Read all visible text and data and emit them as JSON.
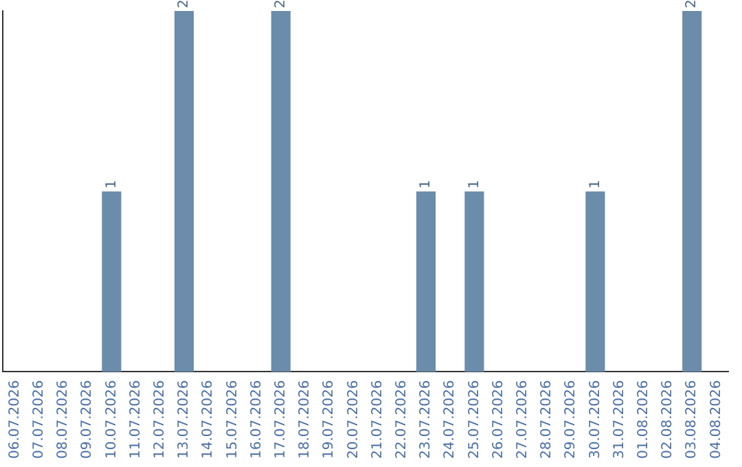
{
  "chart_data": {
    "type": "bar",
    "categories": [
      "06.07.2026",
      "07.07.2026",
      "08.07.2026",
      "09.07.2026",
      "10.07.2026",
      "11.07.2026",
      "12.07.2026",
      "13.07.2026",
      "14.07.2026",
      "15.07.2026",
      "16.07.2026",
      "17.07.2026",
      "18.07.2026",
      "19.07.2026",
      "20.07.2026",
      "21.07.2026",
      "22.07.2026",
      "23.07.2026",
      "24.07.2026",
      "25.07.2026",
      "26.07.2026",
      "27.07.2026",
      "28.07.2026",
      "29.07.2026",
      "30.07.2026",
      "31.07.2026",
      "01.08.2026",
      "02.08.2026",
      "03.08.2026",
      "04.08.2026"
    ],
    "values": [
      0,
      0,
      0,
      0,
      1,
      0,
      0,
      2,
      0,
      0,
      0,
      2,
      0,
      0,
      0,
      0,
      0,
      1,
      0,
      1,
      0,
      0,
      0,
      0,
      1,
      0,
      0,
      0,
      2,
      0
    ],
    "value_labels": [
      null,
      null,
      null,
      null,
      "1",
      null,
      null,
      "2",
      null,
      null,
      null,
      "2",
      null,
      null,
      null,
      null,
      null,
      "1",
      null,
      "1",
      null,
      null,
      null,
      null,
      "1",
      null,
      null,
      null,
      "2",
      null
    ],
    "color": "#6b8cab",
    "grid": false,
    "legend": false
  }
}
